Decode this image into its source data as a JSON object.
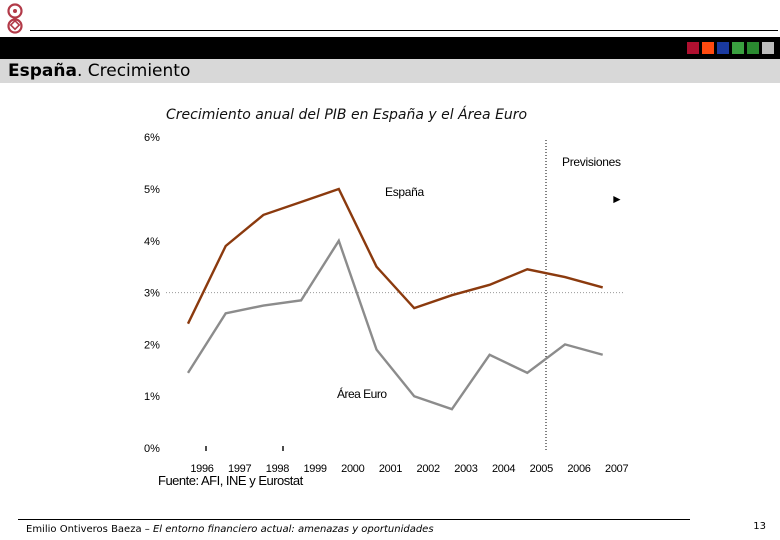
{
  "header": {
    "title_bold": "España",
    "title_rest": ". Crecimiento",
    "swatch_colors": [
      "#b01030",
      "#ff4a10",
      "#1a3aa0",
      "#3aa040",
      "#2a8a30",
      "#bdbdbd"
    ]
  },
  "chart_data": {
    "type": "line",
    "title": "Crecimiento anual del PIB en España y el Área Euro",
    "categories": [
      "1996",
      "1997",
      "1998",
      "1999",
      "2000",
      "2001",
      "2002",
      "2003",
      "2004",
      "2005",
      "2006",
      "2007"
    ],
    "y_ticks": [
      "0%",
      "1%",
      "2%",
      "3%",
      "4%",
      "5%",
      "6%"
    ],
    "ylim": [
      0,
      6
    ],
    "reference_line": 3,
    "forecast_start": "2005",
    "forecast_label": "Previsiones",
    "forecast_arrow": "►",
    "series": [
      {
        "name": "España",
        "color": "#8b3a0e",
        "label": "España",
        "values": [
          2.4,
          3.9,
          4.5,
          4.75,
          5.0,
          3.5,
          2.7,
          2.95,
          3.15,
          3.45,
          3.3,
          3.1
        ]
      },
      {
        "name": "Área Euro",
        "color": "#8c8c8c",
        "label": "Área Euro",
        "values": [
          1.45,
          2.6,
          2.75,
          2.85,
          4.0,
          1.9,
          1.0,
          0.75,
          1.8,
          1.45,
          2.0,
          1.8
        ]
      }
    ]
  },
  "source": "Fuente: AFI, INE y Eurostat",
  "footer": {
    "author": "Emilio Ontiveros Baeza – ",
    "talk": "El entorno financiero actual: amenazas y oportunidades",
    "page": "13"
  }
}
